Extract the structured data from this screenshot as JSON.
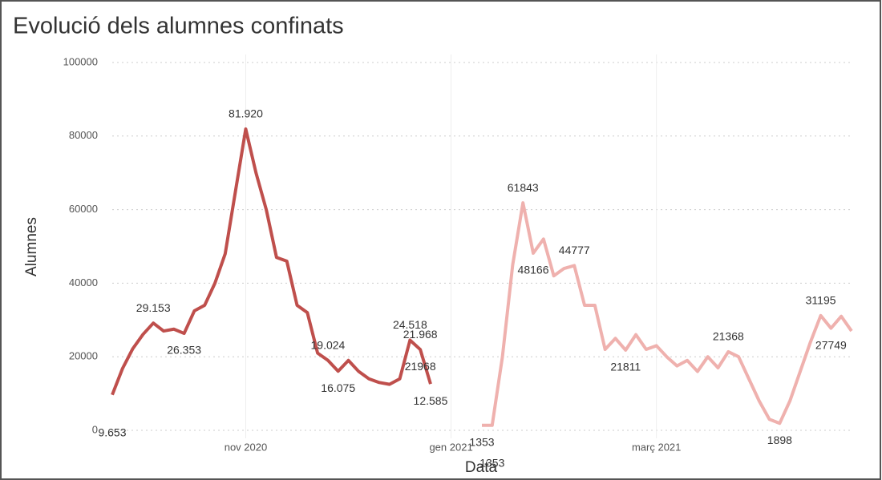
{
  "chart_data": {
    "type": "line",
    "title": "Evolució dels alumnes confinats",
    "x_label": "Data",
    "y_label": "Alumnes",
    "categories": [
      null,
      null,
      null,
      null,
      null,
      null,
      null,
      null,
      null,
      null,
      null,
      null,
      null,
      "nov 2020",
      null,
      null,
      null,
      null,
      null,
      null,
      null,
      null,
      null,
      null,
      null,
      null,
      null,
      null,
      null,
      null,
      null,
      null,
      null,
      "gen 2021",
      null,
      null,
      null,
      null,
      null,
      null,
      null,
      null,
      null,
      null,
      null,
      null,
      null,
      null,
      null,
      null,
      null,
      null,
      null,
      "març 2021",
      null,
      null,
      null,
      null,
      null,
      null,
      null,
      null,
      null,
      null,
      null,
      null,
      null,
      null,
      null,
      null,
      null,
      null,
      null
    ],
    "ylim": [
      0,
      100000
    ],
    "yticks": [
      0,
      20000,
      40000,
      60000,
      80000,
      100000
    ],
    "grid": true,
    "series": [
      {
        "color": "#bf4f4c",
        "values": [
          9653,
          16800,
          22200,
          26100,
          29153,
          27000,
          27500,
          26353,
          32500,
          34000,
          40000,
          48000,
          65000,
          81920,
          70000,
          60000,
          47000,
          46000,
          34000,
          32000,
          21000,
          19024,
          16075,
          19000,
          16000,
          14000,
          13000,
          12500,
          14000,
          24518,
          21968,
          12585,
          null,
          null,
          null,
          null,
          null,
          null,
          null,
          null,
          null,
          null,
          null,
          null,
          null,
          null,
          null,
          null,
          null,
          null,
          null,
          null,
          null,
          null,
          null,
          null,
          null,
          null,
          null,
          null,
          null,
          null,
          null,
          null,
          null,
          null,
          null,
          null,
          null,
          null,
          null,
          null,
          null
        ],
        "value_labels": [
          "9.653",
          null,
          null,
          null,
          "29.153",
          null,
          null,
          "26.353",
          null,
          null,
          null,
          null,
          null,
          "81.920",
          null,
          null,
          null,
          null,
          null,
          null,
          null,
          "19.024",
          "16.075",
          null,
          null,
          null,
          null,
          null,
          null,
          "24.518",
          "21.968",
          "12.585",
          null,
          null,
          null,
          null,
          null,
          null,
          null,
          null,
          null,
          null,
          null,
          null,
          null,
          null,
          null,
          null,
          null,
          null,
          null,
          null,
          null,
          null,
          null,
          null,
          null,
          null,
          null,
          null,
          null,
          null,
          null,
          null,
          null,
          null,
          null,
          null,
          null,
          null,
          null,
          null,
          null
        ]
      },
      {
        "color": "#efb1ae",
        "values": [
          null,
          null,
          null,
          null,
          null,
          null,
          null,
          null,
          null,
          null,
          null,
          null,
          null,
          null,
          null,
          null,
          null,
          null,
          null,
          null,
          null,
          null,
          null,
          null,
          null,
          null,
          null,
          null,
          null,
          null,
          21968,
          null,
          null,
          null,
          null,
          null,
          1353,
          1353,
          20000,
          45000,
          61843,
          48166,
          52000,
          42000,
          44000,
          44777,
          34000,
          34000,
          22000,
          25000,
          21811,
          26000,
          22000,
          23000,
          20000,
          17500,
          19000,
          16000,
          20000,
          17000,
          21368,
          20000,
          14000,
          8000,
          3000,
          1898,
          8000,
          16000,
          24000,
          31195,
          27749,
          31000,
          27000
        ],
        "value_labels": [
          null,
          null,
          null,
          null,
          null,
          null,
          null,
          null,
          null,
          null,
          null,
          null,
          null,
          null,
          null,
          null,
          null,
          null,
          null,
          null,
          null,
          null,
          null,
          null,
          null,
          null,
          null,
          null,
          null,
          null,
          "21968",
          null,
          null,
          null,
          null,
          null,
          "1353",
          "1353",
          null,
          null,
          "61843",
          "48166",
          null,
          null,
          null,
          "44777",
          null,
          null,
          null,
          null,
          "21811",
          null,
          null,
          null,
          null,
          null,
          null,
          null,
          null,
          null,
          "21368",
          null,
          null,
          null,
          null,
          "1898",
          null,
          null,
          null,
          "31195",
          "27749",
          null,
          null
        ]
      }
    ]
  }
}
